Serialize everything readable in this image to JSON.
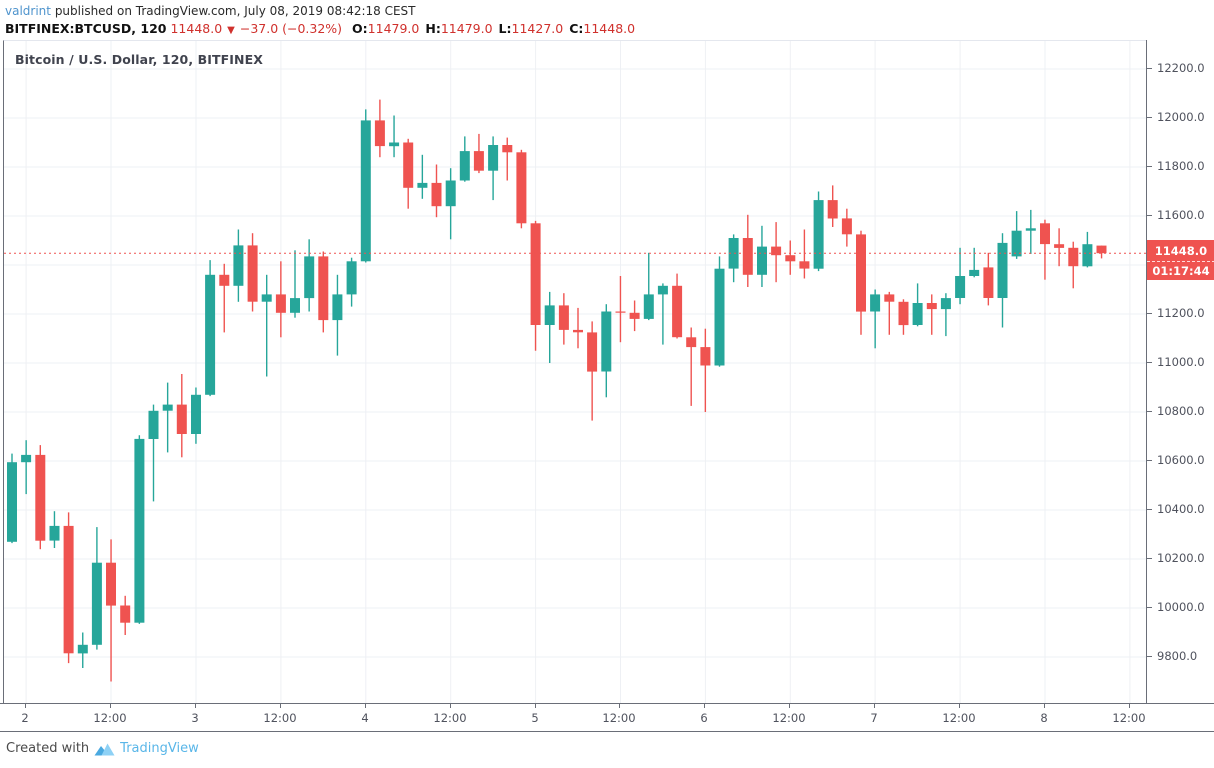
{
  "header": {
    "author": "valdrint",
    "published": "published on TradingView.com, July 08, 2019 08:42:18 CEST",
    "symbol": "BITFINEX:BTCUSD, 120",
    "last_price": "11448.0",
    "direction_icon": "▼",
    "change": "−37.0 (−0.32%)",
    "ohlc": [
      {
        "label": "O:",
        "value": "11479.0"
      },
      {
        "label": "H:",
        "value": "11479.0"
      },
      {
        "label": "L:",
        "value": "11427.0"
      },
      {
        "label": "C:",
        "value": "11448.0"
      }
    ]
  },
  "chart": {
    "title": "Bitcoin / U.S. Dollar, 120, BITFINEX"
  },
  "last_bar": {
    "price": "11448.0",
    "countdown": "01:17:44"
  },
  "footer": {
    "created_with": "Created with",
    "brand": "TradingView"
  },
  "chart_data": {
    "type": "candlestick",
    "title": "Bitcoin / U.S. Dollar, 120, BITFINEX",
    "symbol": "BITFINEX:BTCUSD",
    "exchange": "BITFINEX",
    "interval_minutes": 120,
    "last_price": 11448.0,
    "colors": {
      "up": "#26a69a",
      "down": "#ef5350",
      "last_price_line": "#ef5350",
      "grid": "#eef0f4"
    },
    "y_axis": {
      "min": 9800,
      "max": 12200,
      "step": 200,
      "label_suffix": ".0"
    },
    "x_labels": [
      {
        "text": "2",
        "bar": 1
      },
      {
        "text": "12:00",
        "bar": 7
      },
      {
        "text": "3",
        "bar": 13
      },
      {
        "text": "12:00",
        "bar": 19
      },
      {
        "text": "4",
        "bar": 25
      },
      {
        "text": "12:00",
        "bar": 31
      },
      {
        "text": "5",
        "bar": 37
      },
      {
        "text": "12:00",
        "bar": 43
      },
      {
        "text": "6",
        "bar": 49
      },
      {
        "text": "12:00",
        "bar": 55
      },
      {
        "text": "7",
        "bar": 61
      },
      {
        "text": "12:00",
        "bar": 67
      },
      {
        "text": "8",
        "bar": 73
      },
      {
        "text": "12:00",
        "bar": 79
      }
    ],
    "candles_ohlc": [
      [
        10270,
        10630,
        10265,
        10595
      ],
      [
        10595,
        10685,
        10465,
        10625
      ],
      [
        10625,
        10665,
        10240,
        10275
      ],
      [
        10275,
        10395,
        10245,
        10335
      ],
      [
        10335,
        10390,
        9775,
        9815
      ],
      [
        9815,
        9900,
        9755,
        9850
      ],
      [
        9850,
        10330,
        9830,
        10185
      ],
      [
        10185,
        10280,
        9700,
        10010
      ],
      [
        10010,
        10050,
        9890,
        9940
      ],
      [
        9940,
        10705,
        9935,
        10690
      ],
      [
        10690,
        10830,
        10435,
        10805
      ],
      [
        10805,
        10920,
        10635,
        10830
      ],
      [
        10830,
        10955,
        10615,
        10710
      ],
      [
        10710,
        10900,
        10670,
        10870
      ],
      [
        10870,
        11420,
        10865,
        11360
      ],
      [
        11360,
        11405,
        11125,
        11315
      ],
      [
        11315,
        11545,
        11250,
        11480
      ],
      [
        11480,
        11530,
        11210,
        11250
      ],
      [
        11250,
        11360,
        10945,
        11280
      ],
      [
        11280,
        11415,
        11105,
        11205
      ],
      [
        11205,
        11460,
        11185,
        11265
      ],
      [
        11265,
        11505,
        11210,
        11435
      ],
      [
        11435,
        11455,
        11125,
        11175
      ],
      [
        11175,
        11360,
        11030,
        11280
      ],
      [
        11280,
        11430,
        11230,
        11415
      ],
      [
        11415,
        12035,
        11410,
        11990
      ],
      [
        11990,
        12075,
        11840,
        11885
      ],
      [
        11885,
        12010,
        11840,
        11900
      ],
      [
        11900,
        11915,
        11630,
        11715
      ],
      [
        11715,
        11850,
        11670,
        11735
      ],
      [
        11735,
        11810,
        11595,
        11640
      ],
      [
        11640,
        11795,
        11505,
        11745
      ],
      [
        11745,
        11925,
        11740,
        11865
      ],
      [
        11865,
        11935,
        11775,
        11785
      ],
      [
        11785,
        11925,
        11665,
        11890
      ],
      [
        11890,
        11920,
        11745,
        11860
      ],
      [
        11860,
        11870,
        11550,
        11570
      ],
      [
        11570,
        11580,
        11050,
        11155
      ],
      [
        11155,
        11290,
        11000,
        11235
      ],
      [
        11235,
        11285,
        11075,
        11135
      ],
      [
        11135,
        11225,
        11060,
        11125
      ],
      [
        11125,
        11170,
        10765,
        10965
      ],
      [
        10965,
        11240,
        10860,
        11210
      ],
      [
        11210,
        11355,
        11085,
        11205
      ],
      [
        11205,
        11255,
        11130,
        11180
      ],
      [
        11180,
        11450,
        11175,
        11280
      ],
      [
        11280,
        11325,
        11075,
        11315
      ],
      [
        11315,
        11365,
        11100,
        11105
      ],
      [
        11105,
        11145,
        10825,
        11065
      ],
      [
        11065,
        11140,
        10800,
        10990
      ],
      [
        10990,
        11435,
        10985,
        11385
      ],
      [
        11385,
        11525,
        11330,
        11510
      ],
      [
        11510,
        11605,
        11310,
        11360
      ],
      [
        11360,
        11560,
        11310,
        11475
      ],
      [
        11475,
        11575,
        11330,
        11440
      ],
      [
        11440,
        11500,
        11360,
        11415
      ],
      [
        11415,
        11545,
        11345,
        11385
      ],
      [
        11385,
        11700,
        11375,
        11665
      ],
      [
        11665,
        11725,
        11555,
        11590
      ],
      [
        11590,
        11630,
        11475,
        11525
      ],
      [
        11525,
        11540,
        11115,
        11210
      ],
      [
        11210,
        11300,
        11060,
        11280
      ],
      [
        11280,
        11290,
        11115,
        11250
      ],
      [
        11250,
        11260,
        11115,
        11155
      ],
      [
        11155,
        11325,
        11150,
        11245
      ],
      [
        11245,
        11280,
        11115,
        11220
      ],
      [
        11220,
        11285,
        11110,
        11265
      ],
      [
        11265,
        11470,
        11240,
        11355
      ],
      [
        11355,
        11470,
        11350,
        11380
      ],
      [
        11390,
        11450,
        11235,
        11265
      ],
      [
        11265,
        11530,
        11145,
        11490
      ],
      [
        11435,
        11620,
        11425,
        11540
      ],
      [
        11540,
        11625,
        11445,
        11550
      ],
      [
        11570,
        11585,
        11340,
        11485
      ],
      [
        11485,
        11550,
        11395,
        11470
      ],
      [
        11470,
        11495,
        11305,
        11395
      ],
      [
        11395,
        11535,
        11390,
        11485
      ],
      [
        11479,
        11479,
        11427,
        11448
      ]
    ]
  }
}
